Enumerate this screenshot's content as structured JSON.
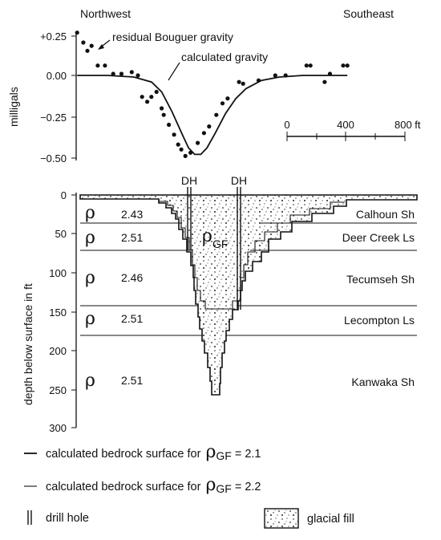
{
  "gravity_panel": {
    "direction_left": "Northwest",
    "direction_right": "Southeast",
    "ylabel": "milligals",
    "yticks": [
      "+0.25",
      "0.00",
      "−0.25",
      "−0.50"
    ],
    "annotation_observed": "residual Bouguer gravity",
    "annotation_calculated": "calculated gravity",
    "scale_labels": [
      "0",
      "400",
      "800 ft"
    ]
  },
  "section_panel": {
    "ylabel": "depth below surface in ft",
    "yticks": [
      "0",
      "50",
      "100",
      "150",
      "200",
      "250",
      "300"
    ],
    "drill_hole_labels": [
      "DH",
      "DH"
    ],
    "fill_symbol": "ρ",
    "fill_subscript": "GF",
    "layers": [
      {
        "name": "Calhoun Sh",
        "density": "2.43"
      },
      {
        "name": "Deer Creek Ls",
        "density": "2.51"
      },
      {
        "name": "Tecumseh Sh",
        "density": "2.46"
      },
      {
        "name": "Lecompton Ls",
        "density": "2.51"
      },
      {
        "name": "Kanwaka Sh",
        "density": "2.51"
      }
    ]
  },
  "legend": {
    "line1": "calculated bedrock surface for",
    "line1_value": "= 2.1",
    "line2": "calculated bedrock surface for",
    "line2_value": "= 2.2",
    "rho": "ρ",
    "subscript": "GF",
    "drill_hole": "drill hole",
    "glacial_fill": "glacial fill"
  },
  "chart_data": [
    {
      "type": "scatter",
      "title": "",
      "xlabel": "",
      "ylabel": "milligals",
      "ylim": [
        -0.55,
        0.3
      ],
      "x_unit": "ft",
      "x_scale_bar": [
        0,
        800
      ],
      "series": [
        {
          "name": "residual Bouguer gravity",
          "points": [
            [
              -1425,
              0.26
            ],
            [
              -1383,
              0.2
            ],
            [
              -1355,
              0.15
            ],
            [
              -1327,
              0.18
            ],
            [
              -1285,
              0.06
            ],
            [
              -1236,
              0.06
            ],
            [
              -1180,
              0.01
            ],
            [
              -1124,
              0.01
            ],
            [
              -1054,
              0.02
            ],
            [
              -1012,
              0.0
            ],
            [
              -984,
              -0.13
            ],
            [
              -949,
              -0.16
            ],
            [
              -921,
              -0.13
            ],
            [
              -886,
              -0.1
            ],
            [
              -851,
              -0.2
            ],
            [
              -837,
              -0.24
            ],
            [
              -802,
              -0.3
            ],
            [
              -767,
              -0.36
            ],
            [
              -739,
              -0.42
            ],
            [
              -718,
              -0.45
            ],
            [
              -690,
              -0.49
            ],
            [
              -655,
              -0.47
            ],
            [
              -606,
              -0.41
            ],
            [
              -564,
              -0.35
            ],
            [
              -529,
              -0.31
            ],
            [
              -480,
              -0.24
            ],
            [
              -438,
              -0.17
            ],
            [
              -403,
              -0.14
            ],
            [
              -326,
              -0.04
            ],
            [
              -298,
              -0.05
            ],
            [
              -193,
              -0.03
            ],
            [
              -80,
              0.0
            ],
            [
              -10,
              0.0
            ],
            [
              132,
              0.06
            ],
            [
              159,
              0.06
            ],
            [
              255,
              -0.04
            ],
            [
              291,
              0.01
            ],
            [
              381,
              0.06
            ],
            [
              409,
              0.06
            ]
          ]
        },
        {
          "name": "calculated gravity",
          "points": [
            [
              -1425,
              0.0
            ],
            [
              -1215,
              0.0
            ],
            [
              -1040,
              -0.01
            ],
            [
              -920,
              -0.04
            ],
            [
              -851,
              -0.1
            ],
            [
              -781,
              -0.22
            ],
            [
              -711,
              -0.36
            ],
            [
              -669,
              -0.44
            ],
            [
              -627,
              -0.48
            ],
            [
              -585,
              -0.48
            ],
            [
              -543,
              -0.44
            ],
            [
              -487,
              -0.35
            ],
            [
              -417,
              -0.23
            ],
            [
              -347,
              -0.14
            ],
            [
              -278,
              -0.08
            ],
            [
              -173,
              -0.03
            ],
            [
              -52,
              -0.01
            ],
            [
              108,
              0.0
            ],
            [
              409,
              0.0
            ]
          ]
        }
      ]
    }
  ]
}
